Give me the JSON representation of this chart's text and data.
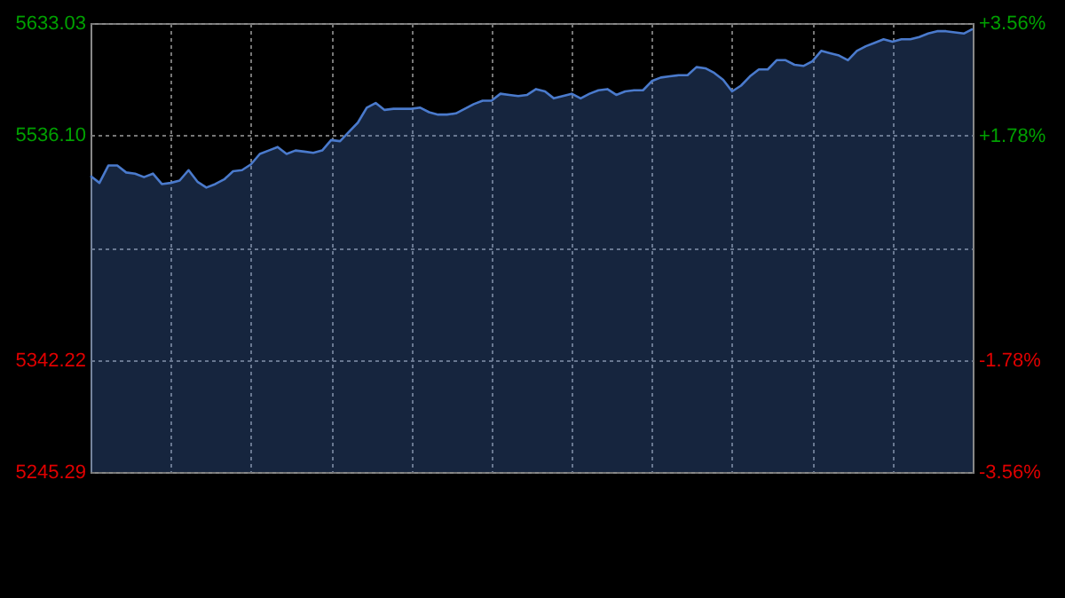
{
  "chart_data": {
    "type": "area",
    "categories": [
      null,
      null,
      null,
      null,
      null,
      null,
      null,
      null,
      null,
      null,
      null,
      null,
      null,
      null,
      null,
      null,
      null,
      null,
      null,
      null,
      null,
      null,
      null,
      null,
      null,
      null,
      null,
      null,
      null,
      null,
      null,
      null,
      null,
      null,
      null,
      null,
      null,
      null,
      null,
      null,
      null,
      null,
      null,
      null,
      null,
      null,
      null,
      null,
      null,
      null,
      null,
      null,
      null,
      null,
      null,
      null,
      null,
      null,
      null,
      null,
      null,
      null,
      null,
      null,
      null,
      null,
      null,
      null,
      null,
      null,
      null,
      null,
      null,
      null,
      null,
      null,
      null,
      null,
      null,
      null,
      null,
      null,
      null,
      null,
      null,
      null,
      null,
      null,
      null,
      null,
      null,
      null,
      null,
      null,
      null,
      null,
      null,
      null,
      null,
      null
    ],
    "series": [
      {
        "color": "#4a7acc",
        "values": [
          5501,
          5495,
          5510,
          5510,
          5504,
          5503,
          5500,
          5503,
          5494,
          5495,
          5497,
          5506,
          5496,
          5491,
          5494,
          5498,
          5505,
          5506,
          5511,
          5520,
          5523,
          5526,
          5520,
          5523,
          5522,
          5521,
          5523,
          5532,
          5531,
          5539,
          5547,
          5560,
          5564,
          5558,
          5559,
          5559,
          5559,
          5560,
          5556,
          5554,
          5554,
          5555,
          5559,
          5563,
          5566,
          5566,
          5572,
          5571,
          5570,
          5571,
          5576,
          5574,
          5568,
          5570,
          5572,
          5568,
          5572,
          5575,
          5576,
          5571,
          5574,
          5575,
          5575,
          5583,
          5586,
          5587,
          5588,
          5588,
          5595,
          5594,
          5590,
          5584,
          5574,
          5579,
          5587,
          5593,
          5593,
          5601,
          5601,
          5597,
          5596,
          5600,
          5609,
          5607,
          5605,
          5601,
          5609,
          5613,
          5616,
          5619,
          5617,
          5619,
          5619,
          5621,
          5624,
          5626,
          5626,
          5625,
          5624,
          5628
        ]
      }
    ],
    "ylim": [
      5245.29,
      5633.03
    ],
    "yticks": [
      {
        "value": 5245.29,
        "label": "5245.29"
      },
      {
        "value": 5342.22,
        "label": "5342.22"
      },
      {
        "value": 5439.16,
        "label": null
      },
      {
        "value": 5536.1,
        "label": "5536.10"
      },
      {
        "value": 5633.03,
        "label": "5633.03"
      }
    ],
    "y2lim": [
      -3.56,
      3.56
    ],
    "y2ticks": [
      {
        "value": -3.56,
        "label": "-3.56%"
      },
      {
        "value": -1.78,
        "label": "-1.78%"
      },
      {
        "value": 1.78,
        "label": "+1.78%"
      },
      {
        "value": 3.56,
        "label": "+3.56%"
      }
    ],
    "tick_labels": "y",
    "grid": true
  }
}
